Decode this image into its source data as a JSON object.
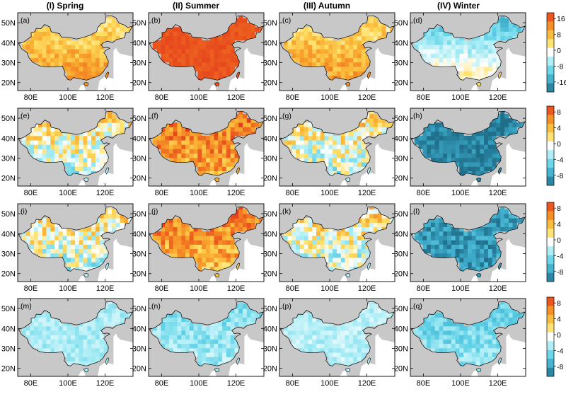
{
  "chart_data": {
    "type": "heatmap",
    "column_titles": [
      "(I) Spring",
      "(II) Summer",
      "(III) Autumn",
      "(IV) Winter"
    ],
    "x_ticks": [
      "80E",
      "100E",
      "120E"
    ],
    "x_tick_values": [
      80,
      100,
      120
    ],
    "y_ticks": [
      "50N",
      "40N",
      "30N",
      "20N"
    ],
    "y_tick_values": [
      50,
      40,
      30,
      20
    ],
    "xlim": [
      73,
      135
    ],
    "ylim": [
      16,
      55
    ],
    "panel_labels": [
      [
        "(a)",
        "(b)",
        "(c)",
        "(d)"
      ],
      [
        "(e)",
        "(f)",
        "(g)",
        "(h)"
      ],
      [
        "(i)",
        "(j)",
        "(k)",
        "(l)"
      ],
      [
        "(m)",
        "(n)",
        "(p)",
        "(q)"
      ]
    ],
    "colorbars": [
      {
        "ticks": [
          "16",
          "8",
          "0",
          "-8",
          "-16"
        ],
        "range": [
          -20,
          20
        ]
      },
      {
        "ticks": [
          "8",
          "4",
          "0",
          "-4",
          "-8"
        ],
        "range": [
          -10,
          10
        ]
      },
      {
        "ticks": [
          "8",
          "4",
          "0",
          "-4",
          "-8"
        ],
        "range": [
          -10,
          10
        ]
      },
      {
        "ticks": [
          "8",
          "4",
          "0",
          "-4",
          "-8"
        ],
        "range": [
          -10,
          10
        ]
      }
    ],
    "colormap": [
      "#1f6f8b",
      "#3aa5c4",
      "#5ed0e6",
      "#a6ecf5",
      "#ffffff",
      "#ffe066",
      "#f9b233",
      "#f37d22",
      "#e3391c"
    ],
    "panel_fill": [
      [
        {
          "mean": 9,
          "north_mean": 4,
          "south_mean": 13,
          "spread": 4
        },
        {
          "mean": 18,
          "north_mean": 18,
          "south_mean": 18,
          "spread": 1
        },
        {
          "mean": 9,
          "north_mean": 4,
          "south_mean": 13,
          "spread": 4
        },
        {
          "mean": -8,
          "north_mean": -13,
          "south_mean": 5,
          "spread": 3
        }
      ],
      [
        {
          "mean": 2,
          "north_mean": 3,
          "south_mean": -2,
          "spread": 4
        },
        {
          "mean": 7,
          "north_mean": 8,
          "south_mean": 5,
          "spread": 3
        },
        {
          "mean": 2,
          "north_mean": 3,
          "south_mean": -2,
          "spread": 4
        },
        {
          "mean": -9,
          "north_mean": -9,
          "south_mean": -9,
          "spread": 1.5
        }
      ],
      [
        {
          "mean": 2,
          "north_mean": 3,
          "south_mean": -2,
          "spread": 4
        },
        {
          "mean": 7,
          "north_mean": 8,
          "south_mean": 4,
          "spread": 3
        },
        {
          "mean": 2,
          "north_mean": 3,
          "south_mean": -2,
          "spread": 4
        },
        {
          "mean": -8,
          "north_mean": -8,
          "south_mean": -8,
          "spread": 2
        }
      ],
      [
        {
          "mean": -2.5,
          "north_mean": -2.5,
          "south_mean": -2.5,
          "spread": 1.2
        },
        {
          "mean": -3,
          "north_mean": -4,
          "south_mean": -2.5,
          "spread": 1.8
        },
        {
          "mean": -2,
          "north_mean": -2,
          "south_mean": -2,
          "spread": 1.2
        },
        {
          "mean": -4,
          "north_mean": -5,
          "south_mean": -3,
          "spread": 1.8
        }
      ]
    ]
  }
}
